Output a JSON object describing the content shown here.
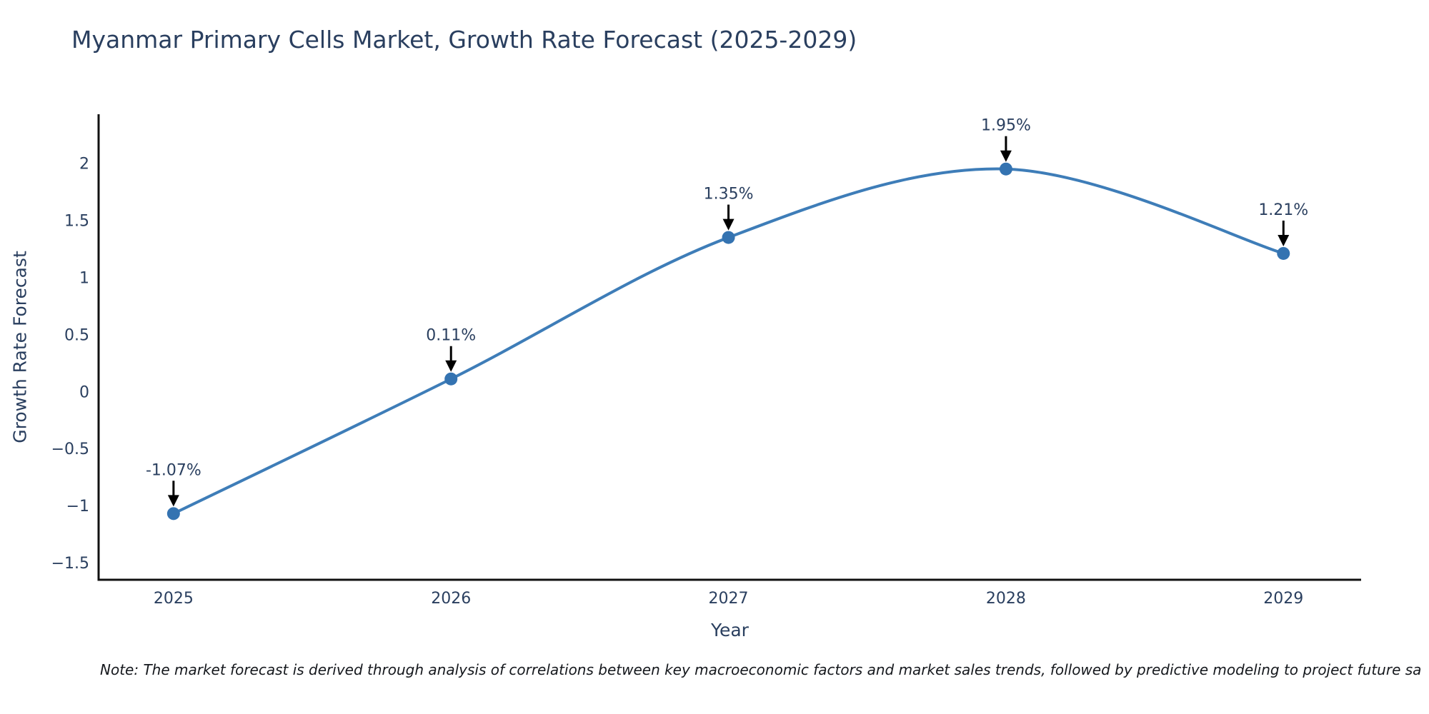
{
  "page": {
    "title": "Myanmar Primary Cells Market, Growth Rate Forecast (2025-2029)"
  },
  "chart_data": {
    "type": "line",
    "title": "Myanmar Primary Cells Market, Growth Rate Forecast (2025-2029)",
    "xlabel": "Year",
    "ylabel": "Growth Rate Forecast",
    "x": [
      2025,
      2026,
      2027,
      2028,
      2029
    ],
    "series": [
      {
        "name": "Growth Rate Forecast",
        "values": [
          -1.07,
          0.11,
          1.35,
          1.95,
          1.21
        ]
      }
    ],
    "point_labels": [
      "-1.07%",
      "0.11%",
      "1.35%",
      "1.95%",
      "1.21%"
    ],
    "xlim": [
      2024.73,
      2029.28
    ],
    "ylim": [
      -1.65,
      2.43
    ],
    "x_ticks": [
      "2025",
      "2026",
      "2027",
      "2028",
      "2029"
    ],
    "x_tick_values": [
      2025,
      2026,
      2027,
      2028,
      2029
    ],
    "y_ticks": [
      "2",
      "1.5",
      "1",
      "0.5",
      "0",
      "−0.5",
      "−1",
      "−1.5"
    ],
    "y_tick_values": [
      2,
      1.5,
      1,
      0.5,
      0,
      -0.5,
      -1,
      -1.5
    ],
    "grid": false,
    "legend_position": "none",
    "line_shape": "spline",
    "colors": {
      "line": "#3e7db8",
      "marker": "#3473b1",
      "axis_line": "#111111",
      "tick_text": "#2a3f5f",
      "annotation_text": "#2a3f5f",
      "annotation_arrow": "#000000",
      "title_text": "#2a3f5f"
    }
  },
  "note": {
    "text": "Note: The market forecast is derived through analysis of correlations between key macroeconomic factors and market sales trends, followed by predictive modeling to project future sa"
  }
}
